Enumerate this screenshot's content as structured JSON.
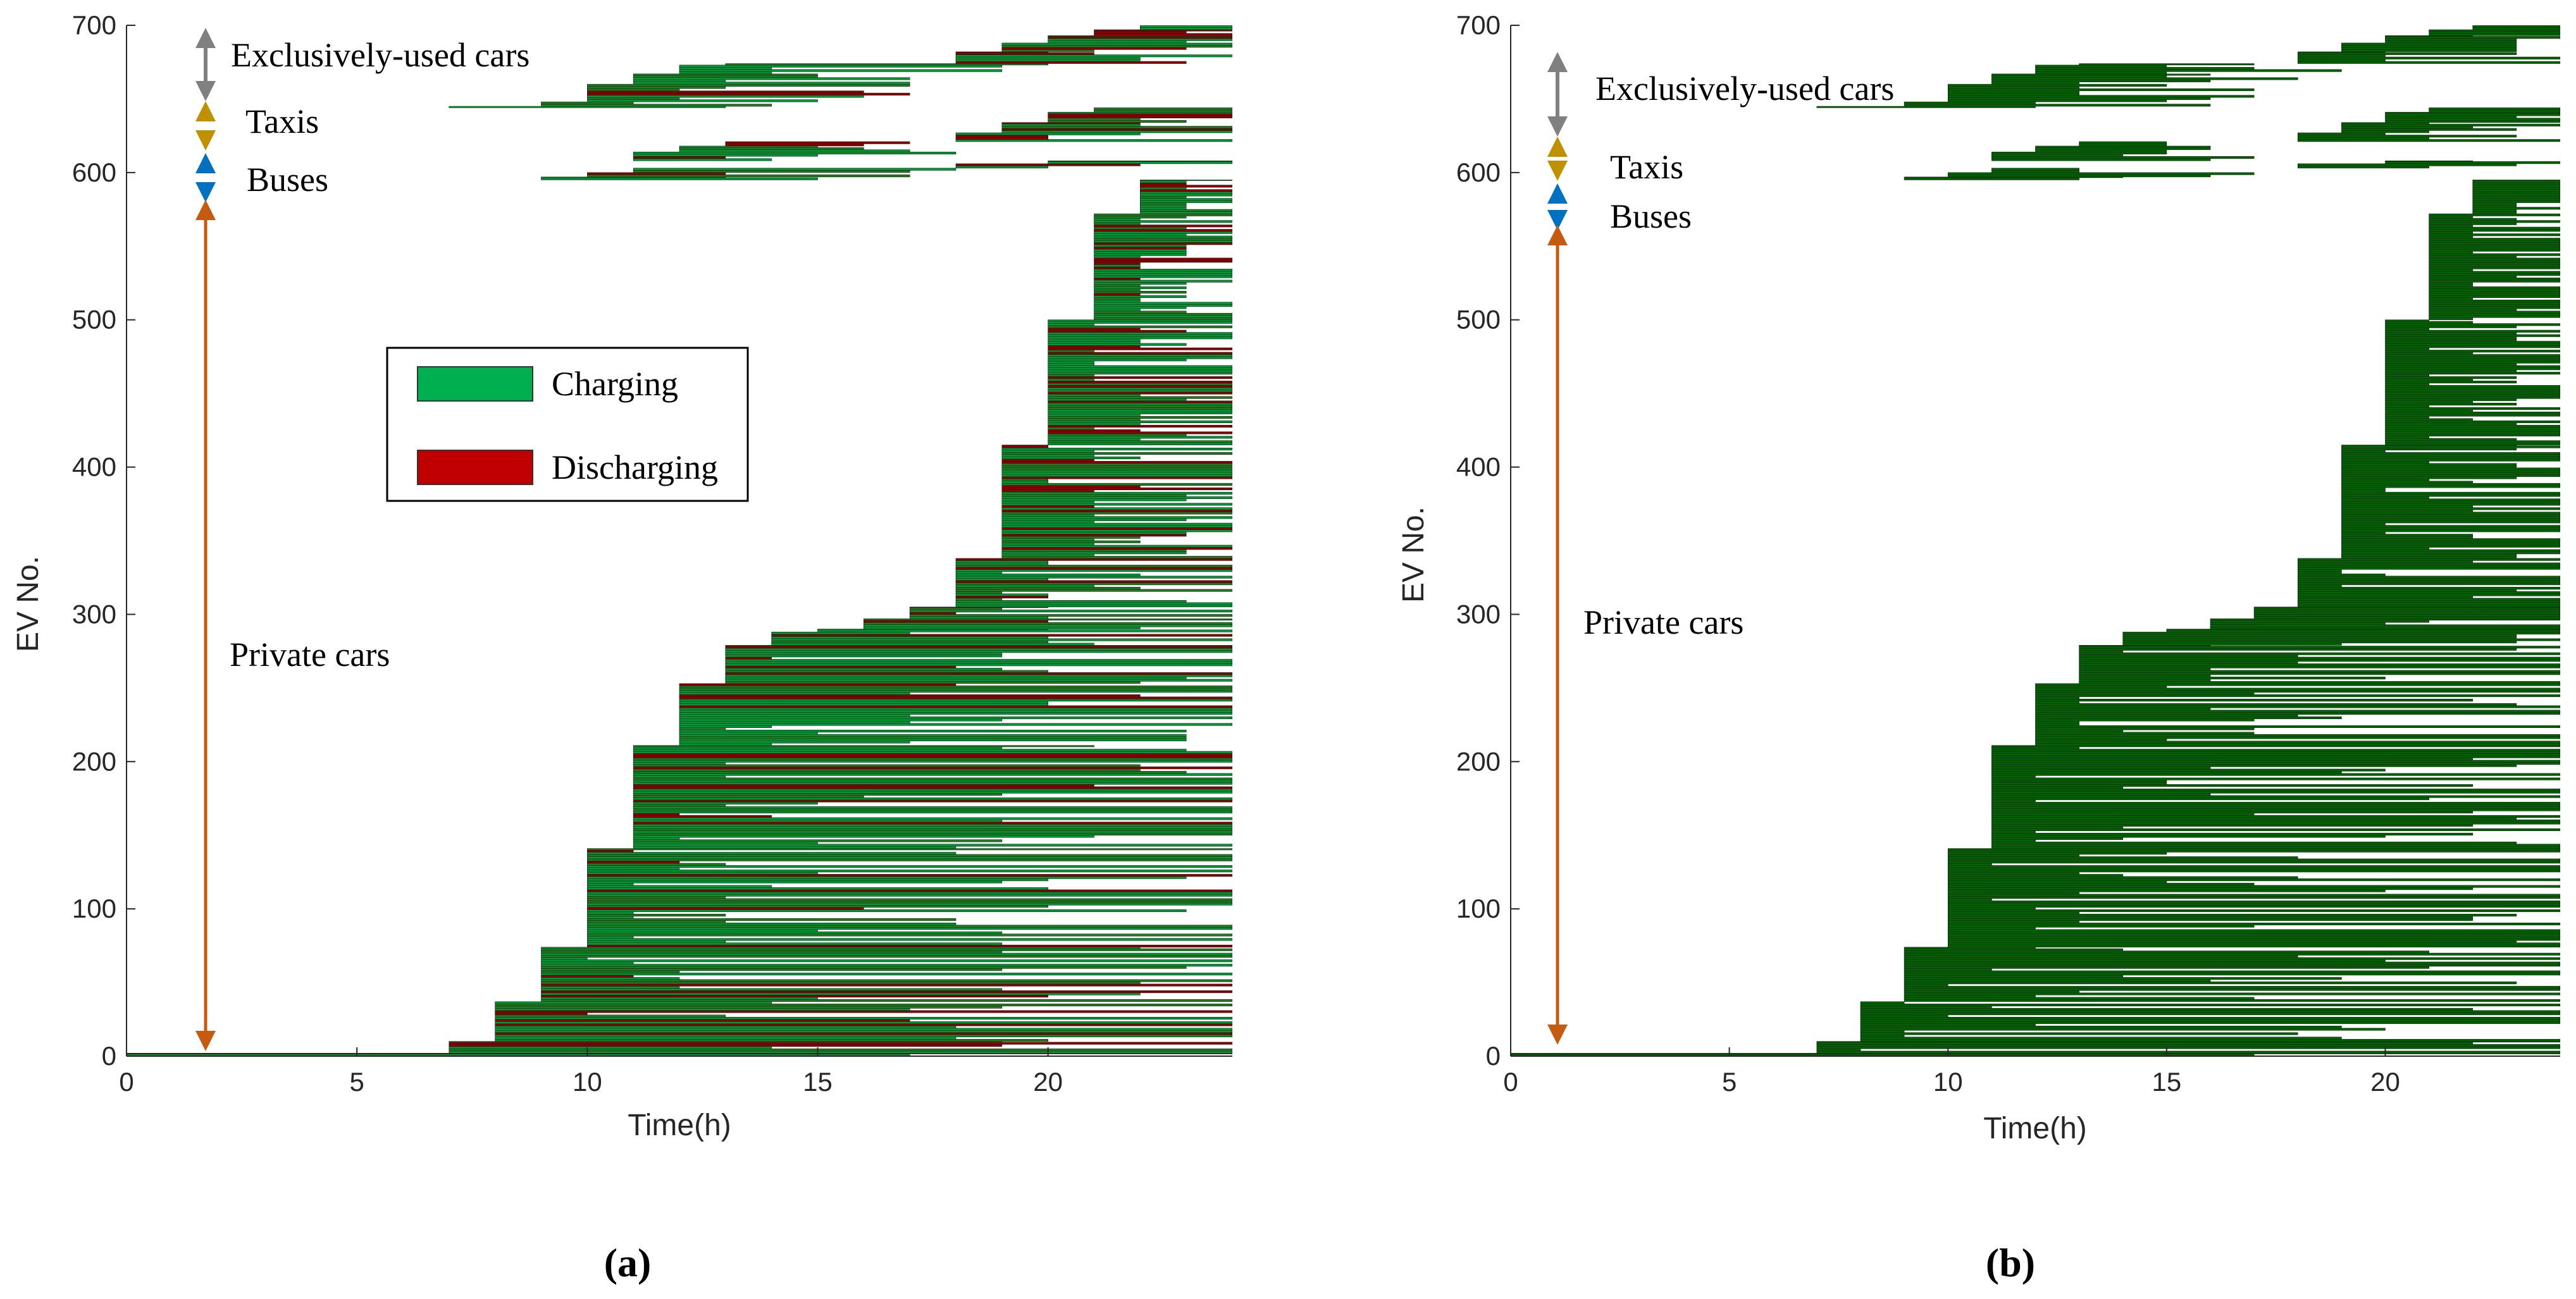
{
  "chart_data": [
    {
      "type": "bar",
      "panel_label": "(a)",
      "xlabel": "Time(h)",
      "ylabel": "EV No.",
      "xlim": [
        0,
        24
      ],
      "ylim": [
        0,
        700
      ],
      "xticks": [
        "0",
        "5",
        "10",
        "15",
        "20"
      ],
      "yticks": [
        "0",
        "100",
        "200",
        "300",
        "400",
        "500",
        "600",
        "700"
      ],
      "legend": {
        "placement": "center-left",
        "entries": [
          {
            "label": "Charging",
            "color": "#00b050"
          },
          {
            "label": "Discharging",
            "color": "#c00000"
          }
        ]
      },
      "mode": "charging-discharging",
      "categories_annotations": [
        {
          "label": "Exclusively-used cars",
          "range": [
            645,
            700
          ],
          "color": "#808080"
        },
        {
          "label": "Taxis",
          "range": [
            620,
            645
          ],
          "color": "#bf9000"
        },
        {
          "label": "Buses",
          "range": [
            595,
            620
          ],
          "color": "#0070c0"
        },
        {
          "label": "Private cars",
          "range": [
            0,
            595
          ],
          "color": "#c55a11"
        }
      ],
      "groups": [
        {
          "name": "Private cars",
          "arrivals": [
            [
              0,
              2
            ],
            [
              7,
              10
            ],
            [
              8,
              37
            ],
            [
              9,
              74
            ],
            [
              10,
              141
            ],
            [
              11,
              211
            ],
            [
              12,
              253
            ],
            [
              13,
              279
            ],
            [
              14,
              288
            ],
            [
              15,
              290
            ],
            [
              16,
              297
            ],
            [
              17,
              305
            ],
            [
              18,
              338
            ],
            [
              19,
              415
            ],
            [
              20,
              500
            ],
            [
              21,
              572
            ],
            [
              22,
              595
            ]
          ]
        },
        {
          "name": "Buses",
          "arrivals": [
            [
              9,
              597
            ],
            [
              10,
              600
            ],
            [
              11,
              603
            ],
            [
              18,
              606
            ],
            [
              20,
              608
            ]
          ]
        },
        {
          "name": "Taxis",
          "arrivals": [
            [
              11,
              614
            ],
            [
              12,
              618
            ],
            [
              13,
              621
            ],
            [
              18,
              627
            ],
            [
              19,
              634
            ],
            [
              20,
              641
            ],
            [
              21,
              644
            ]
          ]
        },
        {
          "name": "Exclusively-used cars",
          "arrivals": [
            [
              7,
              645
            ],
            [
              9,
              648
            ],
            [
              10,
              660
            ],
            [
              11,
              667
            ],
            [
              12,
              673
            ],
            [
              13,
              674
            ],
            [
              18,
              682
            ],
            [
              19,
              688
            ],
            [
              20,
              693
            ],
            [
              21,
              697
            ],
            [
              22,
              700
            ]
          ]
        }
      ]
    },
    {
      "type": "bar",
      "panel_label": "(b)",
      "xlabel": "Time(h)",
      "ylabel": "EV No.",
      "xlim": [
        0,
        24
      ],
      "ylim": [
        0,
        700
      ],
      "xticks": [
        "0",
        "5",
        "10",
        "15",
        "20"
      ],
      "yticks": [
        "0",
        "100",
        "200",
        "300",
        "400",
        "500",
        "600",
        "700"
      ],
      "mode": "charging-only",
      "categories_annotations": [
        {
          "label": "Exclusively-used cars",
          "range": [
            645,
            700
          ],
          "color": "#808080"
        },
        {
          "label": "Taxis",
          "range": [
            620,
            645
          ],
          "color": "#bf9000"
        },
        {
          "label": "Buses",
          "range": [
            595,
            620
          ],
          "color": "#0070c0"
        },
        {
          "label": "Private cars",
          "range": [
            0,
            595
          ],
          "color": "#c55a11"
        }
      ],
      "groups": [
        {
          "name": "Private cars",
          "arrivals": [
            [
              0,
              2
            ],
            [
              7,
              10
            ],
            [
              8,
              37
            ],
            [
              9,
              74
            ],
            [
              10,
              141
            ],
            [
              11,
              211
            ],
            [
              12,
              253
            ],
            [
              13,
              279
            ],
            [
              14,
              288
            ],
            [
              15,
              290
            ],
            [
              16,
              297
            ],
            [
              17,
              305
            ],
            [
              18,
              338
            ],
            [
              19,
              415
            ],
            [
              20,
              500
            ],
            [
              21,
              572
            ],
            [
              22,
              595
            ]
          ]
        },
        {
          "name": "Buses",
          "arrivals": [
            [
              9,
              597
            ],
            [
              10,
              600
            ],
            [
              11,
              603
            ],
            [
              18,
              606
            ],
            [
              20,
              608
            ]
          ]
        },
        {
          "name": "Taxis",
          "arrivals": [
            [
              11,
              614
            ],
            [
              12,
              618
            ],
            [
              13,
              621
            ],
            [
              18,
              627
            ],
            [
              19,
              634
            ],
            [
              20,
              641
            ],
            [
              21,
              644
            ]
          ]
        },
        {
          "name": "Exclusively-used cars",
          "arrivals": [
            [
              7,
              645
            ],
            [
              9,
              648
            ],
            [
              10,
              660
            ],
            [
              11,
              667
            ],
            [
              12,
              673
            ],
            [
              13,
              674
            ],
            [
              18,
              682
            ],
            [
              19,
              688
            ],
            [
              20,
              693
            ],
            [
              21,
              697
            ],
            [
              22,
              700
            ]
          ]
        }
      ]
    }
  ]
}
